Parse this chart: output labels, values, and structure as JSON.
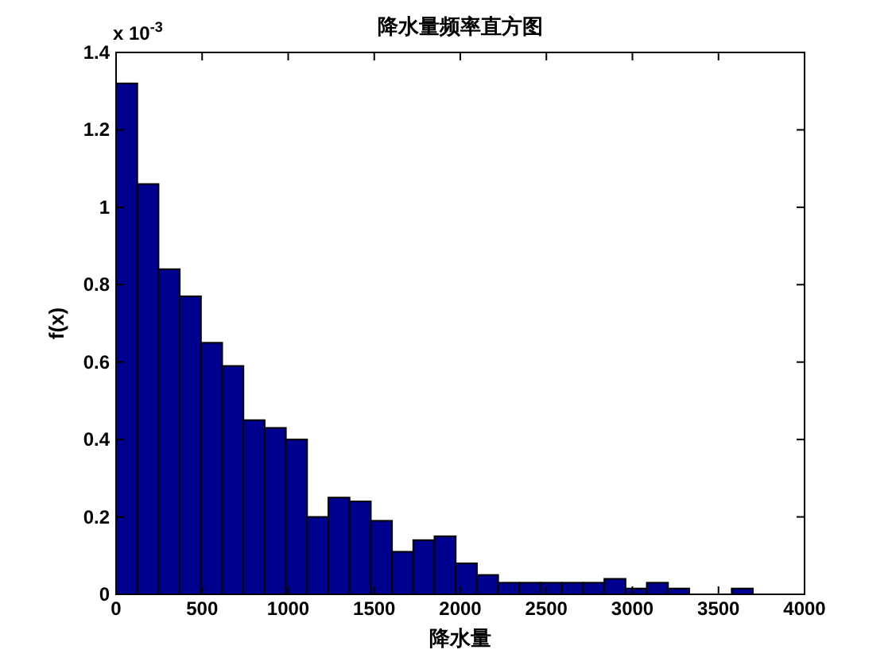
{
  "chart_data": {
    "type": "histogram",
    "title": "降水量频率直方图",
    "xlabel": "降水量",
    "ylabel": "f(x)",
    "annotations": [
      "x 10$^{-3}$"
    ],
    "bins": [
      0,
      123.33,
      246.67,
      370,
      493.33,
      616.67,
      740,
      863.33,
      986.67,
      1110,
      1233.33,
      1356.67,
      1480,
      1603.33,
      1726.67,
      1850,
      1973.33,
      2096.67,
      2220,
      2343.33,
      2466.67,
      2590,
      2713.33,
      2836.67,
      2960,
      3083.33,
      3206.67,
      3330,
      3453.33,
      3576.67,
      3700
    ],
    "values": [
      1.32,
      1.06,
      0.84,
      0.77,
      0.65,
      0.59,
      0.45,
      0.43,
      0.4,
      0.2,
      0.25,
      0.24,
      0.19,
      0.11,
      0.14,
      0.15,
      0.08,
      0.05,
      0.03,
      0.03,
      0.03,
      0.03,
      0.03,
      0.04,
      0.015,
      0.03,
      0.015,
      0,
      0,
      0.015
    ],
    "color": "#00008f",
    "xlim": [
      0,
      4000
    ],
    "ylim": [
      0,
      1.4
    ],
    "xticks": [
      0,
      500,
      1000,
      1500,
      2000,
      2500,
      3000,
      3500,
      4000
    ],
    "yticks": [
      0,
      0.2,
      0.4,
      0.6,
      0.8,
      1,
      1.2,
      1.4
    ]
  }
}
